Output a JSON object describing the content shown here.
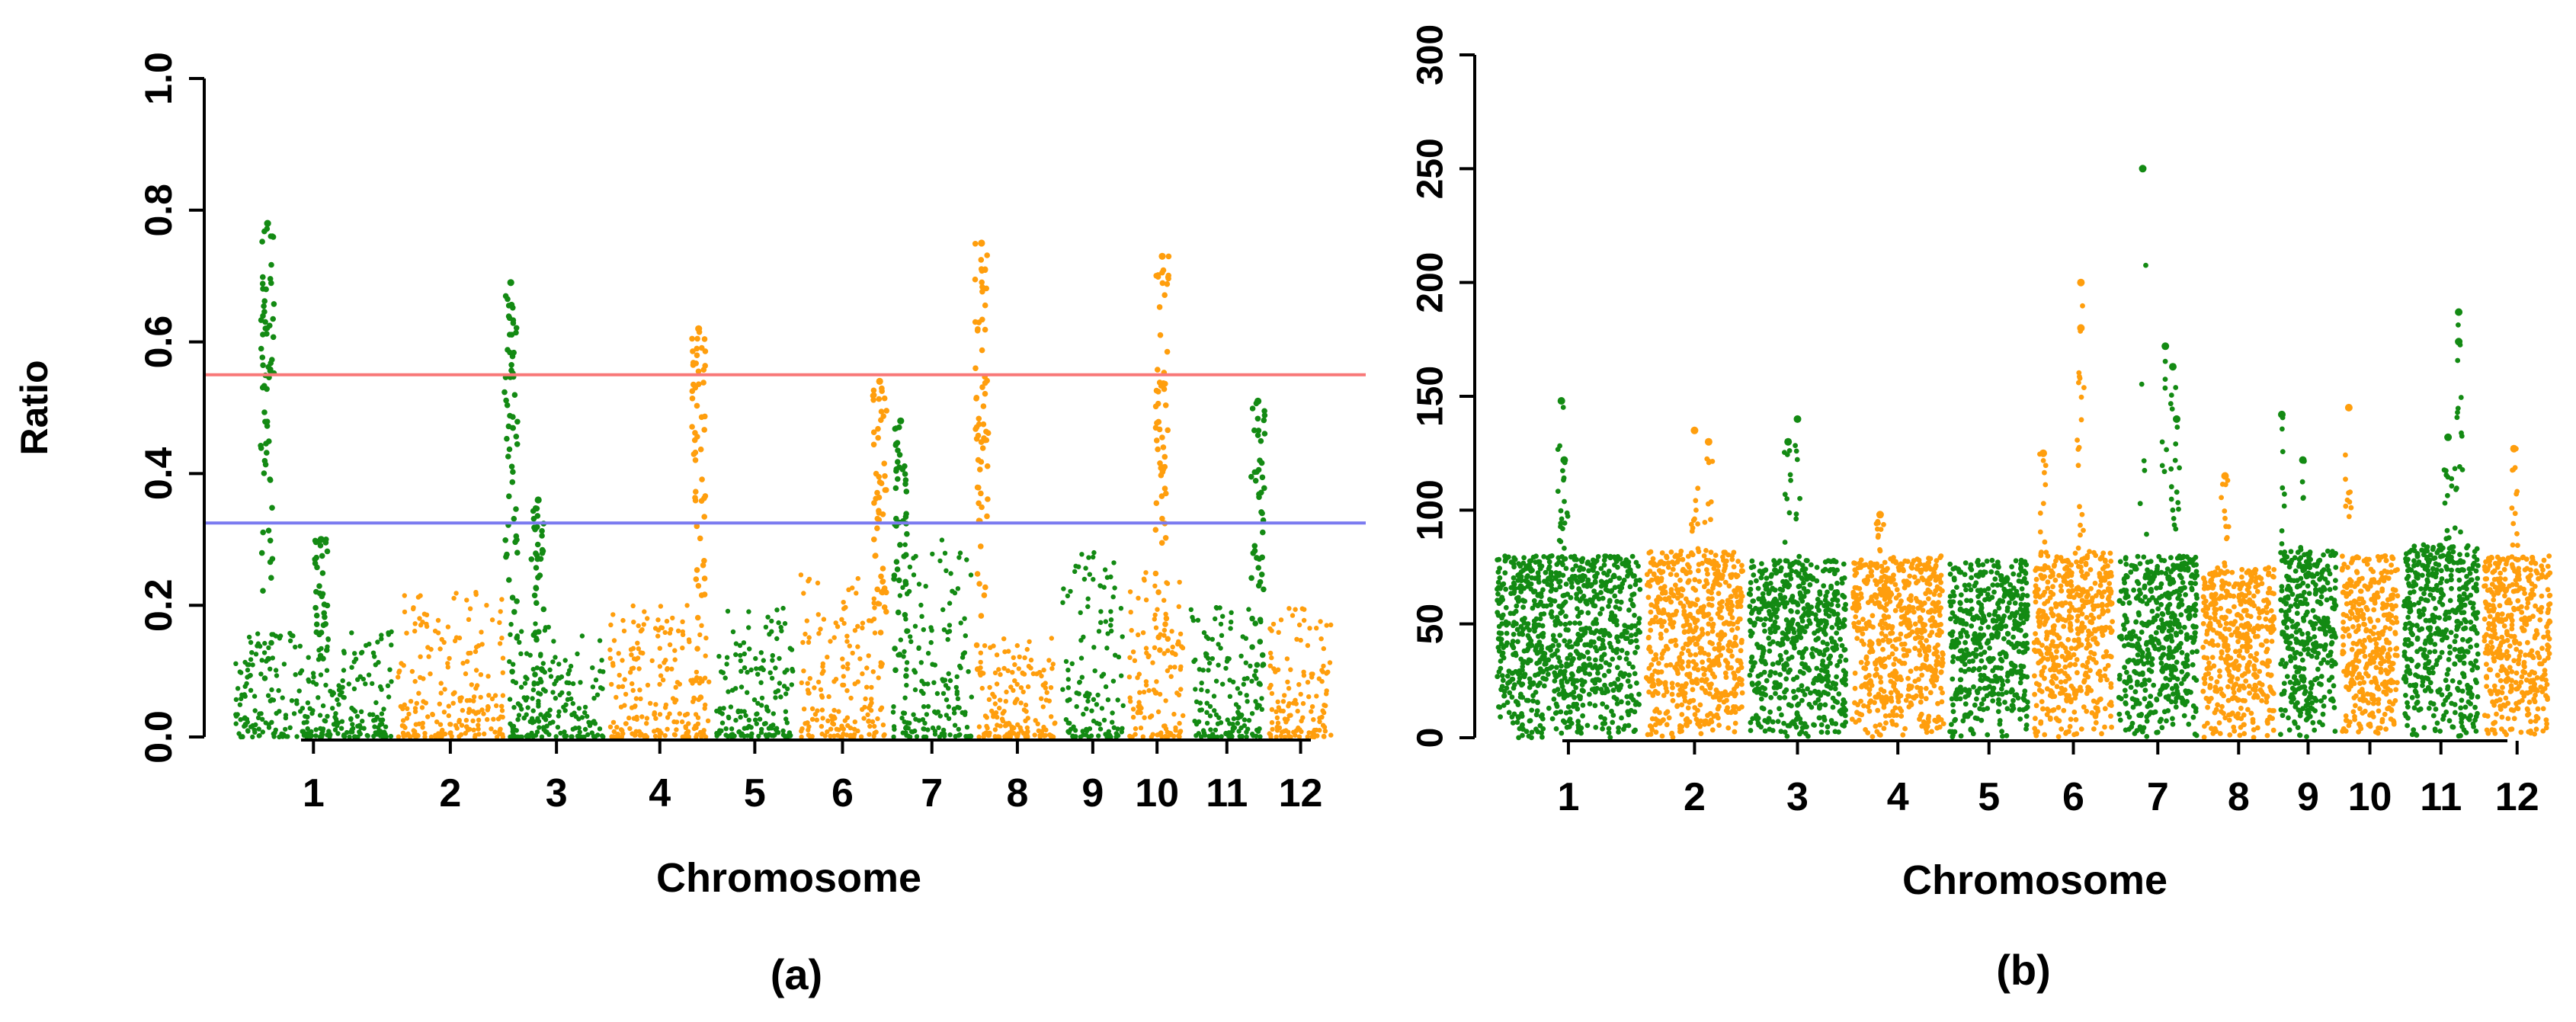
{
  "colors": {
    "green": "#138a13",
    "orange": "#ff9e0d",
    "red_threshold": "#f87878",
    "blue_threshold": "#7a7af0"
  },
  "chart_data": [
    {
      "type": "scatter",
      "panel_label": "(a)",
      "xlabel": "Chromosome",
      "ylabel": "Ratio",
      "ylim": [
        0.0,
        1.0
      ],
      "yticks": [
        "0.0",
        "0.2",
        "0.4",
        "0.6",
        "0.8",
        "1.0"
      ],
      "chromosomes": [
        "1",
        "2",
        "3",
        "4",
        "5",
        "6",
        "7",
        "8",
        "9",
        "10",
        "11",
        "12"
      ],
      "chrom_lengths": [
        1.45,
        1.0,
        0.9,
        0.95,
        0.75,
        0.82,
        0.78,
        0.75,
        0.6,
        0.55,
        0.7,
        0.62
      ],
      "chrom_colors": [
        "green",
        "orange",
        "green",
        "orange",
        "green",
        "orange",
        "green",
        "orange",
        "green",
        "orange",
        "green",
        "orange"
      ],
      "baseline_max": [
        0.16,
        0.22,
        0.18,
        0.2,
        0.2,
        0.25,
        0.3,
        0.15,
        0.28,
        0.25,
        0.2,
        0.2
      ],
      "thresholds": [
        {
          "name": "upper threshold",
          "value": 0.55,
          "color": "red_threshold"
        },
        {
          "name": "lower threshold",
          "value": 0.325,
          "color": "blue_threshold"
        }
      ],
      "peaks": [
        {
          "chrom": "1",
          "pos": 0.2,
          "max": 0.78
        },
        {
          "chrom": "1",
          "pos": 0.55,
          "max": 0.3
        },
        {
          "chrom": "3",
          "pos": 0.0,
          "max": 0.69
        },
        {
          "chrom": "3",
          "pos": 0.3,
          "max": 0.36
        },
        {
          "chrom": "4",
          "pos": 0.9,
          "max": 0.62
        },
        {
          "chrom": "6",
          "pos": 0.95,
          "max": 0.54
        },
        {
          "chrom": "7",
          "pos": 0.1,
          "max": 0.48
        },
        {
          "chrom": "8",
          "pos": 0.02,
          "max": 0.75
        },
        {
          "chrom": "10",
          "pos": 0.6,
          "max": 0.73
        },
        {
          "chrom": "11",
          "pos": 0.95,
          "max": 0.51
        }
      ]
    },
    {
      "type": "scatter",
      "panel_label": "(b)",
      "xlabel": "Chromosome",
      "ylabel": "",
      "ylim": [
        0,
        300
      ],
      "yticks": [
        "0",
        "50",
        "100",
        "150",
        "200",
        "250",
        "300"
      ],
      "chromosomes": [
        "1",
        "2",
        "3",
        "4",
        "5",
        "6",
        "7",
        "8",
        "9",
        "10",
        "11",
        "12"
      ],
      "chrom_lengths": [
        1.45,
        1.0,
        1.0,
        0.95,
        0.82,
        0.82,
        0.82,
        0.75,
        0.6,
        0.6,
        0.78,
        0.7
      ],
      "chrom_colors": [
        "green",
        "orange",
        "green",
        "orange",
        "green",
        "orange",
        "green",
        "orange",
        "green",
        "orange",
        "green",
        "orange"
      ],
      "baseline_max": [
        80,
        82,
        78,
        80,
        78,
        82,
        80,
        75,
        82,
        80,
        85,
        80
      ],
      "outliers": [
        {
          "chrom": "1",
          "pos": 0.45,
          "value": 148
        },
        {
          "chrom": "1",
          "pos": 0.47,
          "value": 122
        },
        {
          "chrom": "2",
          "pos": 0.5,
          "value": 135
        },
        {
          "chrom": "2",
          "pos": 0.65,
          "value": 130
        },
        {
          "chrom": "3",
          "pos": 0.5,
          "value": 140
        },
        {
          "chrom": "3",
          "pos": 0.4,
          "value": 130
        },
        {
          "chrom": "4",
          "pos": 0.3,
          "value": 98
        },
        {
          "chrom": "6",
          "pos": 0.6,
          "value": 200
        },
        {
          "chrom": "6",
          "pos": 0.6,
          "value": 180
        },
        {
          "chrom": "6",
          "pos": 0.1,
          "value": 125
        },
        {
          "chrom": "7",
          "pos": 0.3,
          "value": 250
        },
        {
          "chrom": "7",
          "pos": 0.6,
          "value": 172
        },
        {
          "chrom": "7",
          "pos": 0.7,
          "value": 163
        },
        {
          "chrom": "7",
          "pos": 0.75,
          "value": 140
        },
        {
          "chrom": "8",
          "pos": 0.3,
          "value": 115
        },
        {
          "chrom": "9",
          "pos": 0.0,
          "value": 142
        },
        {
          "chrom": "9",
          "pos": 0.4,
          "value": 122
        },
        {
          "chrom": "10",
          "pos": 0.1,
          "value": 145
        },
        {
          "chrom": "11",
          "pos": 0.75,
          "value": 187
        },
        {
          "chrom": "11",
          "pos": 0.75,
          "value": 174
        },
        {
          "chrom": "11",
          "pos": 0.6,
          "value": 132
        },
        {
          "chrom": "12",
          "pos": 0.45,
          "value": 127
        }
      ]
    }
  ]
}
